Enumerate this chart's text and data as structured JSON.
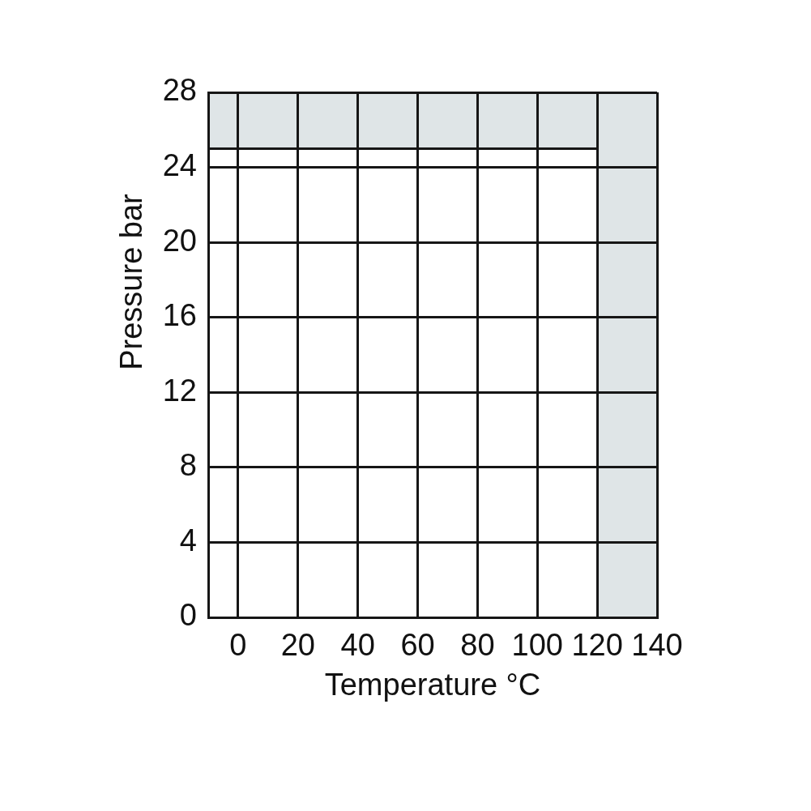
{
  "chart_data": {
    "type": "line",
    "xlabel": "Temperature °C",
    "ylabel": "Pressure bar",
    "series": [
      {
        "color": "#161616",
        "x": [
          -10,
          120
        ],
        "values": [
          25,
          25
        ]
      }
    ],
    "bands": [
      {
        "axis": "y",
        "from": 25,
        "to": 28,
        "color": "#dfe5e7"
      },
      {
        "axis": "x",
        "from": 120,
        "to": 140,
        "color": "#dfe5e7"
      }
    ],
    "xlim": [
      -10,
      140
    ],
    "xticks": [
      0,
      20,
      40,
      60,
      80,
      100,
      120,
      140
    ],
    "ylim": [
      0,
      28
    ],
    "yticks": [
      0,
      4,
      8,
      12,
      16,
      20,
      24,
      28
    ],
    "grid": true
  }
}
